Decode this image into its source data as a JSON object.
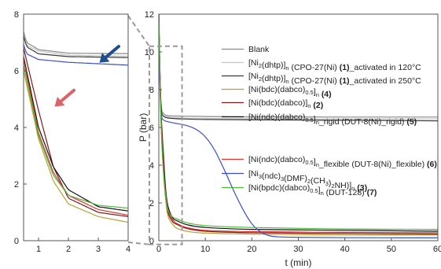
{
  "chart_data": [
    {
      "type": "line",
      "panel": "main",
      "xlabel": "t (min)",
      "ylabel": "P (bar)",
      "xlim": [
        0,
        60
      ],
      "ylim": [
        0,
        12
      ],
      "xticks": [
        0,
        10,
        20,
        30,
        40,
        50,
        60
      ],
      "yticks": [
        0,
        2,
        4,
        6,
        8,
        10,
        12
      ],
      "legend": [
        {
          "name": "Blank",
          "color": "#8a8a8a",
          "sub": [],
          "bold": ""
        },
        {
          "name": "[Ni2(dhtp)]n (CPO-27(Ni) (1)_activated in 120°C",
          "color": "#c4c4c4",
          "sub": [
            {
              "t": "[Ni"
            },
            {
              "t": "2",
              "s": "sub"
            },
            {
              "t": "(dhtp)]"
            },
            {
              "t": "n",
              "s": "sub"
            },
            {
              "t": " (CPO-27(Ni) "
            },
            {
              "t": "(1)",
              "s": "b"
            },
            {
              "t": "_activated in 120°C"
            }
          ]
        },
        {
          "name": "[Ni2(dhtp)]n (CPO-27(Ni) (1)_activated in 250°C",
          "color": "#3a3a3a",
          "sub": [
            {
              "t": "[Ni"
            },
            {
              "t": "2",
              "s": "sub"
            },
            {
              "t": "(dhtp)]"
            },
            {
              "t": "n",
              "s": "sub"
            },
            {
              "t": " (CPO-27(Ni) "
            },
            {
              "t": "(1)",
              "s": "b"
            },
            {
              "t": "_activated in 250°C"
            }
          ]
        },
        {
          "name": "[Ni(bdc)(dabco)0.5]n (4)",
          "color": "#b3a233",
          "sub": [
            {
              "t": "[Ni(bdc)(dabco)"
            },
            {
              "t": "0.5",
              "s": "sub"
            },
            {
              "t": "]"
            },
            {
              "t": "n",
              "s": "sub"
            },
            {
              "t": " "
            },
            {
              "t": "(4)",
              "s": "b"
            }
          ]
        },
        {
          "name": "[Ni(bdc)(dabco)]n (2)",
          "color": "#7a1a1a",
          "sub": [
            {
              "t": "[Ni(bdc)(dabco)]"
            },
            {
              "t": "n",
              "s": "sub"
            },
            {
              "t": " "
            },
            {
              "t": "(2)",
              "s": "b"
            }
          ]
        },
        {
          "name": "[Ni(ndc)(dabco)0.5]n_rigid (DUT-8(Ni)_rigid) (5)",
          "color": "#111111",
          "sub": [
            {
              "t": "[Ni(ndc)(dabco)"
            },
            {
              "t": "0.5",
              "s": "sub"
            },
            {
              "t": "]"
            },
            {
              "t": "n",
              "s": "sub"
            },
            {
              "t": "_rigid (DUT-8(Ni)_rigid) "
            },
            {
              "t": "(5)",
              "s": "b"
            }
          ]
        },
        {
          "name": "[Ni(ndc)(dabco)0.5]n_flexible (DUT-8(Ni)_flexible) (6)",
          "color": "#e0342a",
          "sub": [
            {
              "t": "[Ni(ndc)(dabco)"
            },
            {
              "t": "0.5",
              "s": "sub"
            },
            {
              "t": "]"
            },
            {
              "t": "n",
              "s": "sub"
            },
            {
              "t": "_flexible (DUT-8(Ni)_flexible) "
            },
            {
              "t": "(6)",
              "s": "b"
            }
          ]
        },
        {
          "name": "[Ni3(ndc)3(DMF)2(CH3)2NH)]n (3)",
          "color": "#3b4fc4",
          "sub": [
            {
              "t": "[Ni"
            },
            {
              "t": "3",
              "s": "sub"
            },
            {
              "t": "(ndc)"
            },
            {
              "t": "3",
              "s": "sub"
            },
            {
              "t": "(DMF)"
            },
            {
              "t": "2",
              "s": "sub"
            },
            {
              "t": "(CH"
            },
            {
              "t": "3",
              "s": "sub"
            },
            {
              "t": ")"
            },
            {
              "t": "2",
              "s": "sub"
            },
            {
              "t": "NH)]"
            },
            {
              "t": "n",
              "s": "sub"
            },
            {
              "t": " "
            },
            {
              "t": "(3)",
              "s": "b"
            }
          ]
        },
        {
          "name": "[Ni(bpdc)(dabco)0.5]n (DUT-128) (7)",
          "color": "#4fb83a",
          "sub": [
            {
              "t": "[Ni(bpdc)(dabco)"
            },
            {
              "t": "0.5",
              "s": "sub"
            },
            {
              "t": "]"
            },
            {
              "t": "n",
              "s": "sub"
            },
            {
              "t": " (DUT-128) "
            },
            {
              "t": "(7)",
              "s": "b"
            }
          ]
        }
      ],
      "series": [
        {
          "name": "Blank",
          "color": "#8a8a8a",
          "x": [
            0,
            0.1,
            0.3,
            0.6,
            1.0,
            2,
            5,
            10,
            20,
            40,
            60
          ],
          "y": [
            12,
            10.5,
            8.2,
            7.0,
            6.75,
            6.62,
            6.6,
            6.58,
            6.56,
            6.55,
            6.55
          ]
        },
        {
          "name": "CPO-27(Ni) (1) activated in 120°C",
          "color": "#c4c4c4",
          "x": [
            0,
            0.1,
            0.3,
            0.6,
            1.0,
            2,
            5,
            10,
            20,
            40,
            60
          ],
          "y": [
            12,
            10.4,
            8.1,
            6.9,
            6.7,
            6.55,
            6.5,
            6.48,
            6.46,
            6.45,
            6.45
          ]
        },
        {
          "name": "CPO-27(Ni) (1) activated in 250°C",
          "color": "#3a3a3a",
          "x": [
            0,
            0.1,
            0.3,
            0.6,
            1.0,
            2,
            5,
            10,
            20,
            40,
            60
          ],
          "y": [
            12,
            10.3,
            8.0,
            6.85,
            6.6,
            6.5,
            6.45,
            6.42,
            6.4,
            6.38,
            6.35
          ]
        },
        {
          "name": "(4)",
          "color": "#b3a233",
          "x": [
            0,
            0.2,
            0.5,
            1.0,
            1.5,
            2.0,
            3.0,
            4.0,
            6,
            10,
            20,
            40,
            60
          ],
          "y": [
            12,
            9.0,
            6.0,
            3.6,
            2.1,
            1.3,
            0.85,
            0.65,
            0.5,
            0.4,
            0.35,
            0.3,
            0.3
          ]
        },
        {
          "name": "(2)",
          "color": "#7a1a1a",
          "x": [
            0,
            0.2,
            0.5,
            1.0,
            1.5,
            2.0,
            3.0,
            4.0,
            6,
            10,
            20,
            40,
            60
          ],
          "y": [
            12,
            9.5,
            6.8,
            4.6,
            2.6,
            1.5,
            1.0,
            0.85,
            0.65,
            0.5,
            0.42,
            0.38,
            0.35
          ]
        },
        {
          "name": "(5)",
          "color": "#111111",
          "x": [
            0,
            0.2,
            0.5,
            1.0,
            1.5,
            2.0,
            3.0,
            4.0,
            6,
            10,
            20,
            40,
            60
          ],
          "y": [
            12,
            9.4,
            6.5,
            4.0,
            2.6,
            1.8,
            1.2,
            1.05,
            0.85,
            0.7,
            0.6,
            0.55,
            0.5
          ]
        },
        {
          "name": "(6)",
          "color": "#e0342a",
          "x": [
            0,
            0.2,
            0.5,
            1.0,
            1.5,
            2.0,
            3.0,
            4.0,
            6,
            10,
            20,
            40,
            60
          ],
          "y": [
            12,
            9.3,
            6.4,
            3.8,
            2.4,
            1.6,
            1.1,
            0.9,
            0.7,
            0.55,
            0.48,
            0.44,
            0.42
          ]
        },
        {
          "name": "(3)",
          "color": "#3b4fc4",
          "x": [
            0,
            0.1,
            0.3,
            0.6,
            1.0,
            2,
            4,
            6,
            8,
            10,
            12,
            14,
            16,
            18,
            20,
            22,
            24,
            26,
            30,
            40,
            60
          ],
          "y": [
            12,
            10.2,
            7.6,
            6.6,
            6.4,
            6.3,
            6.2,
            6.1,
            5.9,
            5.5,
            4.8,
            3.8,
            2.7,
            1.7,
            0.9,
            0.45,
            0.25,
            0.2,
            0.18,
            0.16,
            0.15
          ]
        },
        {
          "name": "(7)",
          "color": "#4fb83a",
          "x": [
            0,
            0.2,
            0.5,
            1.0,
            1.5,
            2.0,
            3.0,
            4.0,
            6,
            10,
            20,
            40,
            60
          ],
          "y": [
            12,
            9.2,
            6.2,
            3.7,
            2.3,
            1.6,
            1.25,
            1.15,
            0.95,
            0.8,
            0.7,
            0.62,
            0.6
          ]
        }
      ]
    },
    {
      "type": "line",
      "panel": "inset",
      "xlim": [
        0.5,
        4
      ],
      "ylim": [
        0,
        8
      ],
      "xticks": [
        1,
        2,
        3,
        4
      ],
      "yticks": [
        0,
        2,
        4,
        6,
        8
      ],
      "annotations": [
        {
          "type": "arrow",
          "color": "#1f4e8c",
          "target": [
            3.0,
            6.25
          ]
        },
        {
          "type": "arrow",
          "color": "#d9646a",
          "target": [
            1.5,
            4.7
          ]
        }
      ]
    }
  ]
}
